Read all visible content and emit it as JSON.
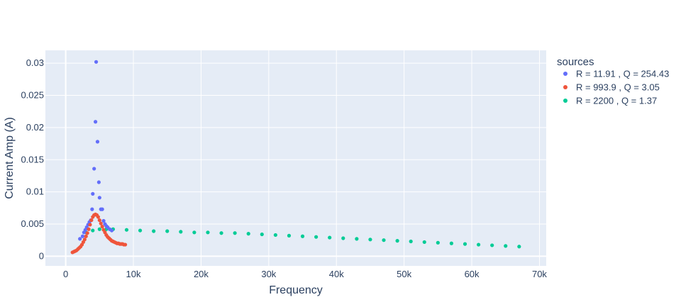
{
  "chart_data": {
    "type": "scatter",
    "xlabel": "Frequency",
    "ylabel": "Current Amp (A)",
    "xlim": [
      -3000,
      71000
    ],
    "ylim": [
      -0.0015,
      0.032
    ],
    "xticks": [
      0,
      10000,
      20000,
      30000,
      40000,
      50000,
      60000,
      70000
    ],
    "xtick_labels": [
      "0",
      "10k",
      "20k",
      "30k",
      "40k",
      "50k",
      "60k",
      "70k"
    ],
    "yticks": [
      0,
      0.005,
      0.01,
      0.015,
      0.02,
      0.025,
      0.03
    ],
    "ytick_labels": [
      "0",
      "0.005",
      "0.01",
      "0.015",
      "0.02",
      "0.025",
      "0.03"
    ],
    "grid": true,
    "legend_title": "sources",
    "legend_position": "right",
    "series": [
      {
        "name": "R = 11.91 , Q = 254.43",
        "color": "#636efa",
        "points": [
          [
            2100,
            0.0027
          ],
          [
            2500,
            0.0031
          ],
          [
            2700,
            0.0037
          ],
          [
            2900,
            0.0041
          ],
          [
            3100,
            0.0045
          ],
          [
            3300,
            0.0049
          ],
          [
            3500,
            0.0053
          ],
          [
            3700,
            0.0056
          ],
          [
            3900,
            0.0073
          ],
          [
            4000,
            0.0097
          ],
          [
            4200,
            0.0136
          ],
          [
            4400,
            0.0209
          ],
          [
            4500,
            0.0302
          ],
          [
            4700,
            0.0178
          ],
          [
            4900,
            0.0115
          ],
          [
            5000,
            0.0091
          ],
          [
            5200,
            0.0073
          ],
          [
            5400,
            0.0073
          ],
          [
            5600,
            0.0055
          ],
          [
            5800,
            0.005
          ],
          [
            6000,
            0.0047
          ],
          [
            6200,
            0.0045
          ],
          [
            6500,
            0.0042
          ],
          [
            6800,
            0.004
          ]
        ]
      },
      {
        "name": "R = 993.9 , Q = 3.05",
        "color": "#ef553b",
        "points": [
          [
            1000,
            0.0006
          ],
          [
            1200,
            0.0007
          ],
          [
            1400,
            0.0008
          ],
          [
            1600,
            0.0009
          ],
          [
            1800,
            0.0011
          ],
          [
            2000,
            0.0013
          ],
          [
            2200,
            0.0015
          ],
          [
            2400,
            0.0018
          ],
          [
            2600,
            0.0022
          ],
          [
            2800,
            0.0026
          ],
          [
            3000,
            0.0031
          ],
          [
            3200,
            0.0036
          ],
          [
            3400,
            0.0042
          ],
          [
            3600,
            0.0049
          ],
          [
            3800,
            0.0056
          ],
          [
            4000,
            0.0061
          ],
          [
            4200,
            0.0064
          ],
          [
            4400,
            0.0065
          ],
          [
            4600,
            0.0064
          ],
          [
            4800,
            0.0061
          ],
          [
            5000,
            0.0056
          ],
          [
            5200,
            0.0051
          ],
          [
            5400,
            0.0046
          ],
          [
            5600,
            0.0041
          ],
          [
            5800,
            0.0037
          ],
          [
            6000,
            0.0033
          ],
          [
            6200,
            0.003
          ],
          [
            6400,
            0.0028
          ],
          [
            6600,
            0.0026
          ],
          [
            6800,
            0.0024
          ],
          [
            7000,
            0.0023
          ],
          [
            7200,
            0.0022
          ],
          [
            7400,
            0.0021
          ],
          [
            7600,
            0.002
          ],
          [
            7800,
            0.002
          ],
          [
            8000,
            0.0019
          ],
          [
            8200,
            0.0019
          ],
          [
            8400,
            0.0019
          ],
          [
            8600,
            0.0018
          ],
          [
            8800,
            0.0018
          ]
        ]
      },
      {
        "name": "R = 2200 , Q = 1.37",
        "color": "#00cc96",
        "points": [
          [
            3000,
            0.0037
          ],
          [
            4000,
            0.004
          ],
          [
            5000,
            0.0042
          ],
          [
            6000,
            0.0042
          ],
          [
            7000,
            0.0042
          ],
          [
            9000,
            0.0041
          ],
          [
            11000,
            0.004
          ],
          [
            13000,
            0.0039
          ],
          [
            15000,
            0.0039
          ],
          [
            17000,
            0.0038
          ],
          [
            19000,
            0.0037
          ],
          [
            21000,
            0.0037
          ],
          [
            23000,
            0.0036
          ],
          [
            25000,
            0.0036
          ],
          [
            27000,
            0.0035
          ],
          [
            29000,
            0.0034
          ],
          [
            31000,
            0.0033
          ],
          [
            33000,
            0.0032
          ],
          [
            35000,
            0.0031
          ],
          [
            37000,
            0.003
          ],
          [
            39000,
            0.0029
          ],
          [
            41000,
            0.0028
          ],
          [
            43000,
            0.0027
          ],
          [
            45000,
            0.0026
          ],
          [
            47000,
            0.0025
          ],
          [
            49000,
            0.0024
          ],
          [
            51000,
            0.0023
          ],
          [
            53000,
            0.0022
          ],
          [
            55000,
            0.0021
          ],
          [
            57000,
            0.002
          ],
          [
            59000,
            0.0019
          ],
          [
            61000,
            0.0018
          ],
          [
            63000,
            0.0017
          ],
          [
            65000,
            0.0016
          ],
          [
            67000,
            0.0015
          ]
        ]
      }
    ]
  }
}
